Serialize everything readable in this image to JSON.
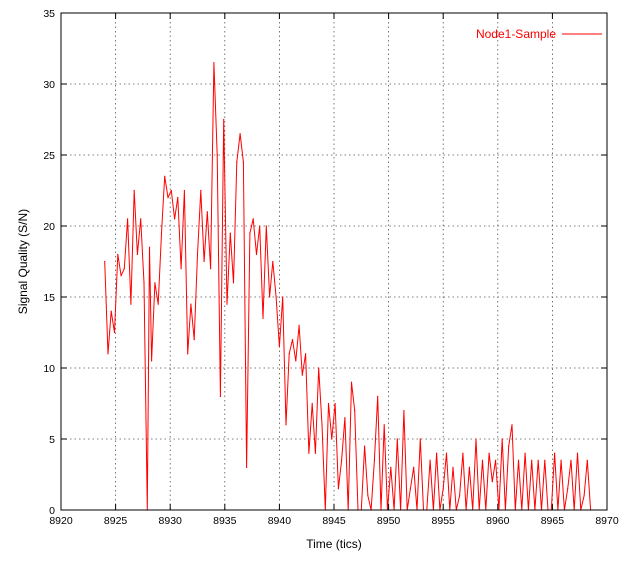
{
  "chart_data": {
    "type": "line",
    "title": "",
    "xlabel": "Time (tics)",
    "ylabel": "Signal Quality (S/N)",
    "xlim": [
      8920,
      8970
    ],
    "ylim": [
      0,
      35
    ],
    "x_ticks": [
      8920,
      8925,
      8930,
      8935,
      8940,
      8945,
      8950,
      8955,
      8960,
      8965,
      8970
    ],
    "y_ticks": [
      0,
      5,
      10,
      15,
      20,
      25,
      30,
      35
    ],
    "grid": true,
    "legend_position": "top-right",
    "series": [
      {
        "name": "Node1-Sample",
        "color": "#ff0000",
        "x": [
          8924.0,
          8924.3,
          8924.6,
          8924.9,
          8925.2,
          8925.5,
          8925.8,
          8926.1,
          8926.4,
          8926.7,
          8927.0,
          8927.3,
          8927.6,
          8927.9,
          8928.1,
          8928.3,
          8928.6,
          8928.9,
          8929.2,
          8929.5,
          8929.8,
          8930.1,
          8930.4,
          8930.7,
          8931.0,
          8931.3,
          8931.6,
          8931.9,
          8932.2,
          8932.5,
          8932.8,
          8933.1,
          8933.4,
          8933.7,
          8934.0,
          8934.3,
          8934.6,
          8934.9,
          8935.2,
          8935.5,
          8935.8,
          8936.1,
          8936.4,
          8936.7,
          8937.0,
          8937.3,
          8937.6,
          8937.9,
          8938.2,
          8938.5,
          8938.8,
          8939.1,
          8939.4,
          8939.7,
          8940.0,
          8940.3,
          8940.6,
          8940.9,
          8941.2,
          8941.5,
          8941.8,
          8942.1,
          8942.4,
          8942.7,
          8943.0,
          8943.3,
          8943.6,
          8943.9,
          8944.2,
          8944.5,
          8944.8,
          8945.1,
          8945.4,
          8945.7,
          8946.0,
          8946.3,
          8946.6,
          8946.9,
          8947.2,
          8947.5,
          8947.8,
          8948.1,
          8948.4,
          8948.7,
          8949.0,
          8949.3,
          8949.6,
          8949.9,
          8950.2,
          8950.5,
          8950.8,
          8951.1,
          8951.4,
          8951.7,
          8952.0,
          8952.3,
          8952.6,
          8952.9,
          8953.2,
          8953.5,
          8953.8,
          8954.1,
          8954.4,
          8954.7,
          8955.0,
          8955.3,
          8955.6,
          8955.9,
          8956.2,
          8956.5,
          8956.8,
          8957.1,
          8957.4,
          8957.7,
          8958.0,
          8958.3,
          8958.6,
          8958.9,
          8959.2,
          8959.5,
          8959.8,
          8960.1,
          8960.4,
          8960.7,
          8961.0,
          8961.3,
          8961.6,
          8961.9,
          8962.2,
          8962.5,
          8962.8,
          8963.1,
          8963.4,
          8963.7,
          8964.0,
          8964.3,
          8964.6,
          8964.9,
          8965.2,
          8965.5,
          8965.8,
          8966.1,
          8966.4,
          8966.7,
          8967.0,
          8967.3,
          8967.6,
          8967.9,
          8968.2,
          8968.5
        ],
        "y": [
          17.5,
          11.0,
          14.0,
          12.5,
          18.0,
          16.5,
          17.0,
          20.5,
          14.5,
          22.5,
          18.0,
          20.5,
          16.0,
          0.0,
          18.5,
          10.5,
          16.0,
          14.5,
          19.5,
          23.5,
          22.0,
          22.5,
          20.5,
          22.0,
          17.0,
          22.5,
          11.0,
          14.5,
          12.0,
          18.0,
          22.5,
          17.5,
          21.0,
          17.0,
          31.5,
          25.0,
          8.0,
          27.5,
          14.5,
          19.5,
          16.0,
          24.5,
          26.5,
          24.5,
          3.0,
          19.5,
          20.5,
          18.0,
          20.0,
          13.5,
          20.0,
          15.0,
          17.5,
          15.0,
          11.5,
          15.0,
          6.0,
          11.0,
          12.0,
          10.5,
          13.0,
          9.5,
          11.0,
          4.0,
          7.5,
          4.0,
          10.0,
          6.0,
          0.0,
          7.5,
          5.0,
          7.5,
          1.5,
          3.5,
          6.5,
          0.0,
          9.0,
          7.0,
          0.0,
          0.0,
          4.5,
          1.0,
          0.0,
          3.5,
          8.0,
          0.0,
          6.0,
          0.0,
          3.0,
          0.0,
          5.0,
          0.0,
          7.0,
          0.0,
          1.5,
          3.0,
          0.0,
          5.0,
          0.0,
          0.0,
          3.5,
          0.0,
          4.0,
          0.0,
          1.5,
          4.0,
          0.0,
          3.0,
          0.0,
          1.0,
          4.0,
          0.0,
          3.0,
          0.0,
          5.0,
          0.0,
          3.5,
          0.0,
          4.0,
          2.0,
          3.5,
          0.0,
          5.0,
          0.0,
          4.5,
          6.0,
          0.0,
          3.5,
          0.0,
          4.0,
          0.0,
          3.5,
          0.0,
          3.5,
          0.0,
          3.5,
          0.0,
          0.0,
          4.0,
          0.0,
          3.5,
          0.0,
          1.5,
          3.5,
          0.0,
          4.0,
          0.0,
          1.0,
          3.5,
          0.0
        ]
      }
    ]
  }
}
